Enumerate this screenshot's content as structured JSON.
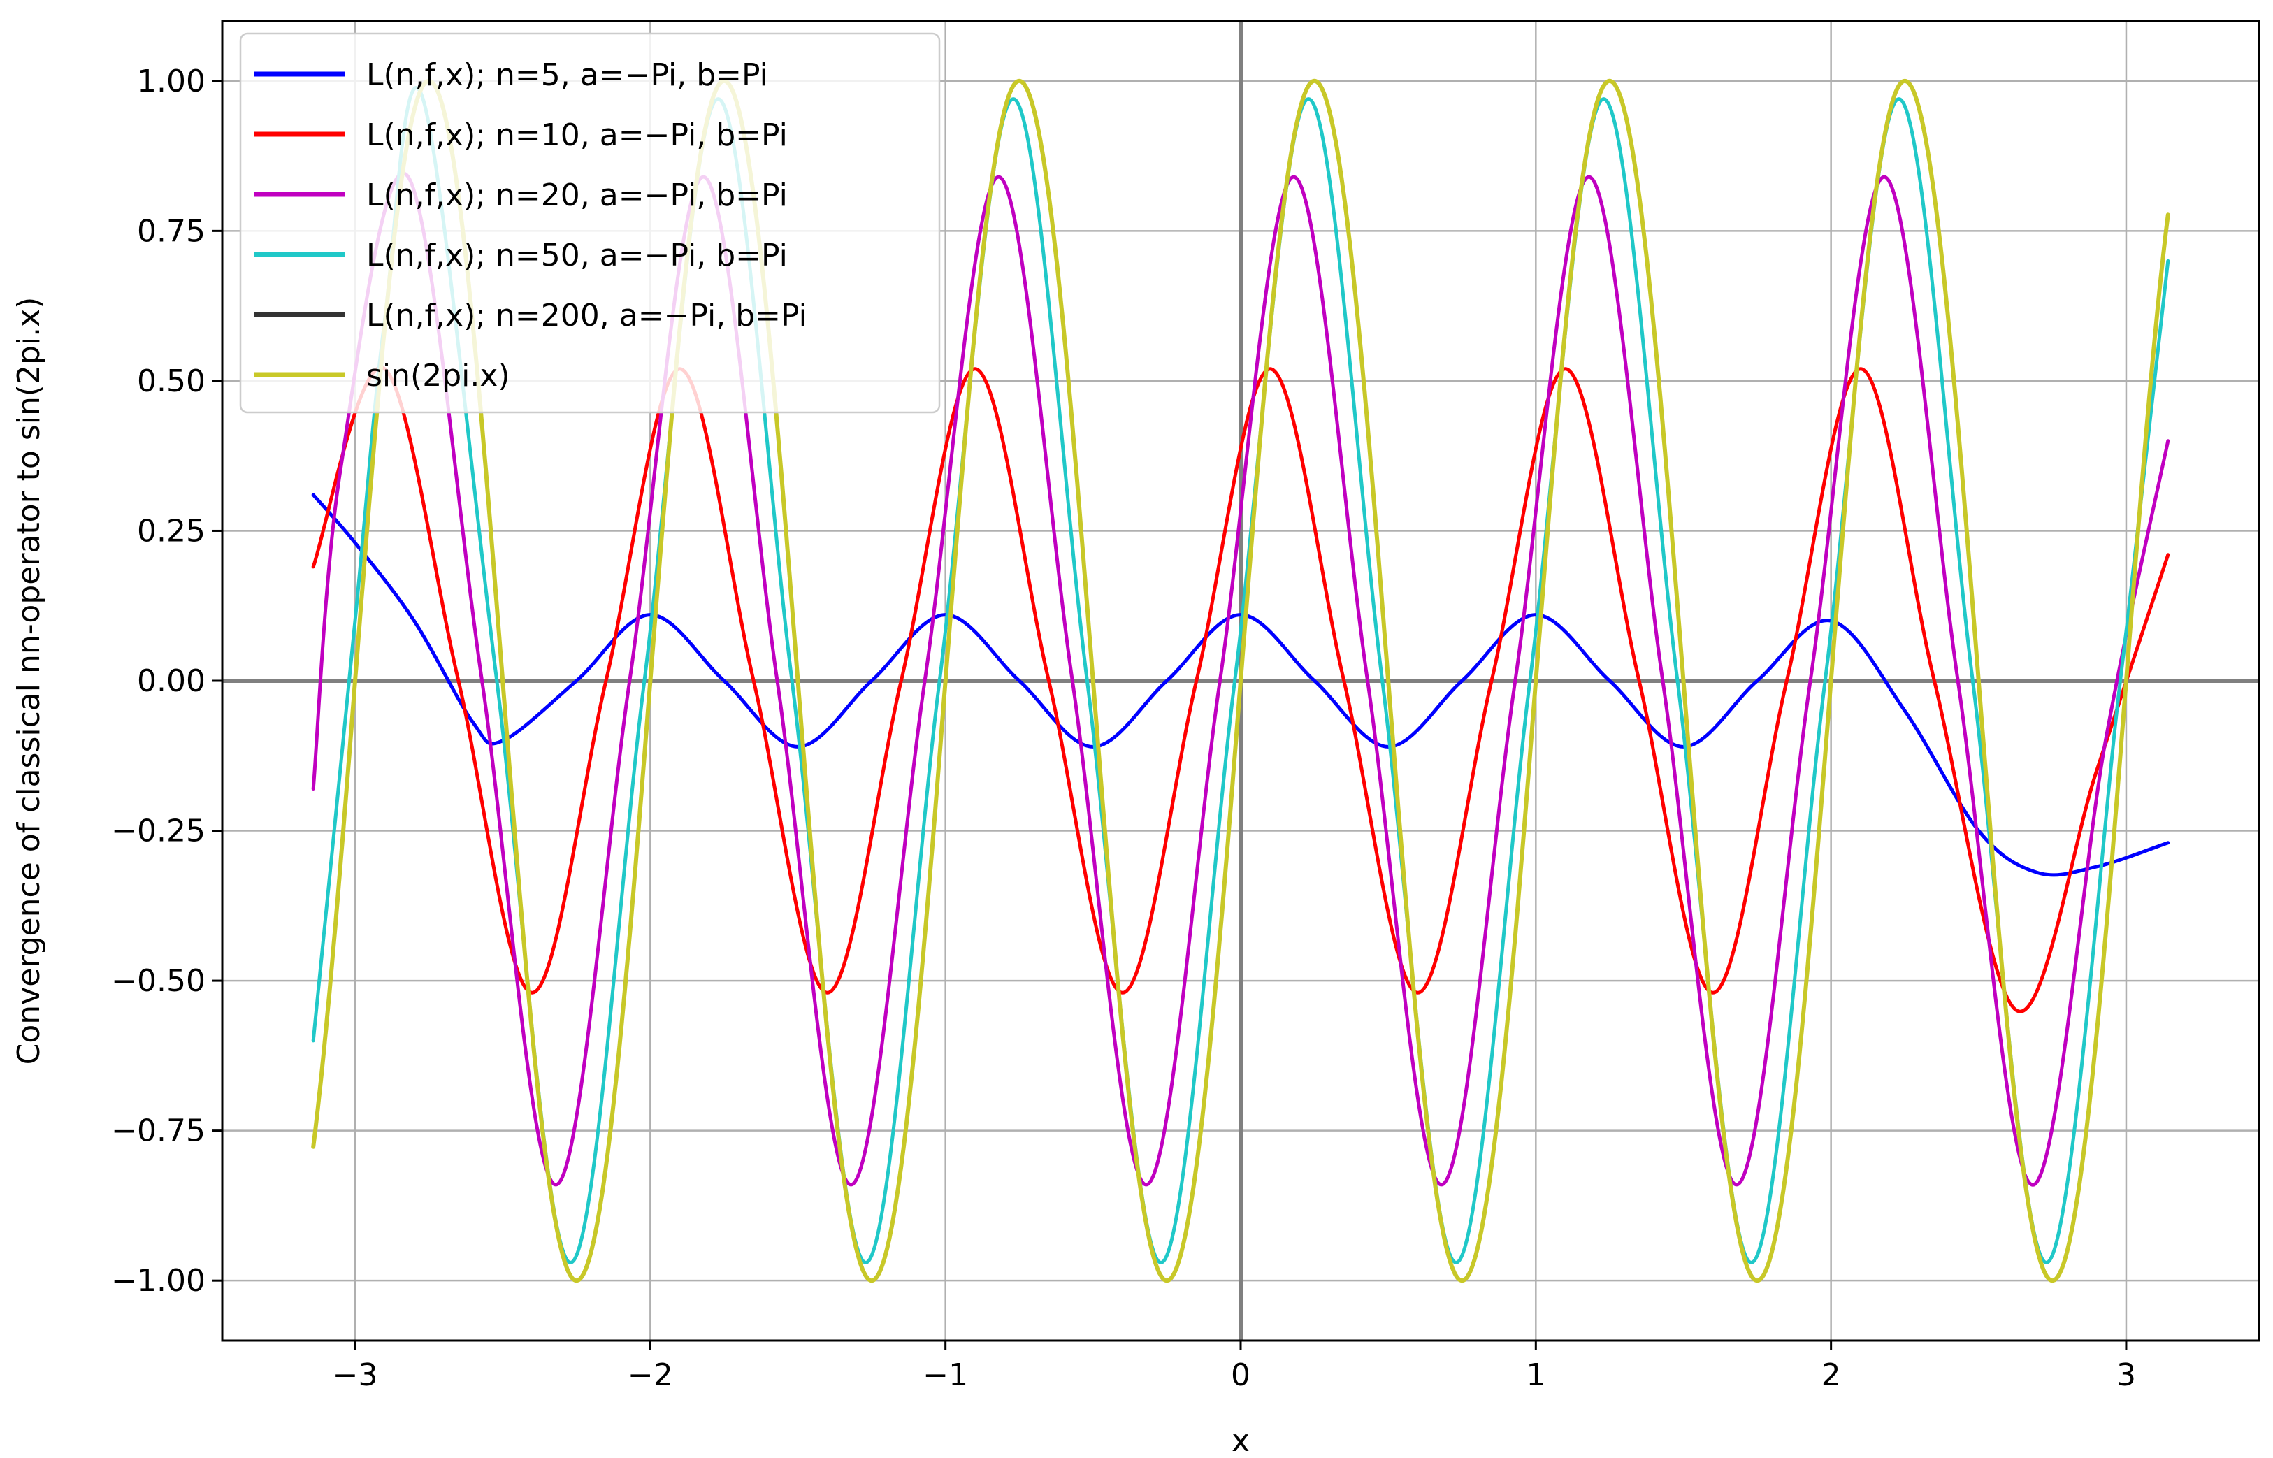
{
  "chart_data": {
    "type": "line",
    "xlabel": "x",
    "ylabel": "Convergence of classical nn-operator to sin(2pi.x)",
    "xlim": [
      -3.45,
      3.45
    ],
    "ylim": [
      -1.1,
      1.1
    ],
    "x_ticks": [
      -3,
      -2,
      -1,
      0,
      1,
      2,
      3
    ],
    "x_tick_labels": [
      "−3",
      "−2",
      "−1",
      "0",
      "1",
      "2",
      "3"
    ],
    "y_ticks": [
      1.0,
      0.75,
      0.5,
      0.25,
      0.0,
      -0.25,
      -0.5,
      -0.75,
      -1.0
    ],
    "y_tick_labels": [
      "1.00",
      "0.75",
      "0.50",
      "0.25",
      "0.00",
      "−0.25",
      "−0.50",
      "−0.75",
      "−1.00"
    ],
    "grid": true,
    "zero_lines": true,
    "legend_position": "top-left",
    "series": [
      {
        "name": "L(n,f,x); n=5, a=−Pi, b=Pi",
        "color": "#0000ff",
        "x": [
          -3.1416,
          -3.0,
          -2.8,
          -2.6,
          -2.5,
          -2.25,
          -2.0,
          -1.75,
          -1.5,
          -1.25,
          -1.0,
          -0.75,
          -0.5,
          -0.25,
          0.0,
          0.25,
          0.5,
          0.75,
          1.0,
          1.25,
          1.5,
          1.75,
          2.0,
          2.25,
          2.5,
          2.7,
          2.9,
          3.1416
        ],
        "y": [
          0.31,
          0.23,
          0.1,
          -0.07,
          -0.1,
          0.0,
          0.11,
          0.0,
          -0.11,
          0.0,
          0.11,
          0.0,
          -0.11,
          0.0,
          0.11,
          0.0,
          -0.11,
          0.0,
          0.11,
          0.0,
          -0.11,
          0.0,
          0.1,
          -0.05,
          -0.25,
          -0.32,
          -0.31,
          -0.27
        ]
      },
      {
        "name": "L(n,f,x); n=10, a=−Pi, b=Pi",
        "color": "#ff0000",
        "x": [
          -3.1416,
          -2.9,
          -2.65,
          -2.4,
          -2.15,
          -1.9,
          -1.65,
          -1.4,
          -1.15,
          -0.9,
          -0.65,
          -0.4,
          -0.15,
          0.1,
          0.35,
          0.6,
          0.85,
          1.1,
          1.35,
          1.6,
          1.85,
          2.1,
          2.35,
          2.63,
          2.9,
          3.1416
        ],
        "y": [
          0.19,
          0.52,
          0.0,
          -0.52,
          0.0,
          0.52,
          0.0,
          -0.52,
          0.0,
          0.52,
          0.0,
          -0.52,
          0.0,
          0.52,
          0.0,
          -0.52,
          0.0,
          0.52,
          0.0,
          -0.52,
          0.0,
          0.52,
          0.0,
          -0.55,
          -0.15,
          0.21
        ]
      },
      {
        "name": "L(n,f,x); n=20, a=−Pi, b=Pi",
        "color": "#c000c0",
        "x": [
          -3.1416,
          -3.05,
          -2.82,
          -2.57,
          -2.32,
          -2.07,
          -1.82,
          -1.57,
          -1.32,
          -1.07,
          -0.82,
          -0.57,
          -0.32,
          -0.07,
          0.18,
          0.43,
          0.68,
          0.93,
          1.18,
          1.43,
          1.68,
          1.93,
          2.18,
          2.43,
          2.68,
          2.93,
          3.1416
        ],
        "y": [
          -0.18,
          0.35,
          0.84,
          0.0,
          -0.84,
          0.0,
          0.84,
          0.0,
          -0.84,
          0.0,
          0.84,
          0.0,
          -0.84,
          0.0,
          0.84,
          0.0,
          -0.84,
          0.0,
          0.84,
          0.0,
          -0.84,
          0.0,
          0.84,
          0.0,
          -0.84,
          -0.1,
          0.4
        ]
      },
      {
        "name": "L(n,f,x); n=50, a=−Pi, b=Pi",
        "color": "#20c8c8",
        "x": [
          -3.1416,
          -3.0,
          -2.9,
          -2.77,
          -2.52,
          -2.27,
          -2.02,
          -1.77,
          -1.52,
          -1.27,
          -1.02,
          -0.77,
          -0.52,
          -0.27,
          -0.02,
          0.23,
          0.48,
          0.73,
          0.98,
          1.23,
          1.48,
          1.73,
          1.98,
          2.23,
          2.48,
          2.73,
          2.98,
          3.1416
        ],
        "y": [
          -0.6,
          0.1,
          0.6,
          0.97,
          0.0,
          -0.97,
          0.0,
          0.97,
          0.0,
          -0.97,
          0.0,
          0.97,
          0.0,
          -0.97,
          0.0,
          0.97,
          0.0,
          -0.97,
          0.0,
          0.97,
          0.0,
          -0.97,
          0.0,
          0.97,
          0.0,
          -0.97,
          0.0,
          0.7
        ]
      },
      {
        "name": "L(n,f,x); n=200, a=−Pi, b=Pi",
        "color": "#333333",
        "func": "sin2pi",
        "x_range": [
          -3.1416,
          3.1416
        ]
      },
      {
        "name": "sin(2pi.x)",
        "color": "#c8c828",
        "func": "sin2pi",
        "x_range": [
          -3.1416,
          3.1416
        ]
      }
    ]
  }
}
